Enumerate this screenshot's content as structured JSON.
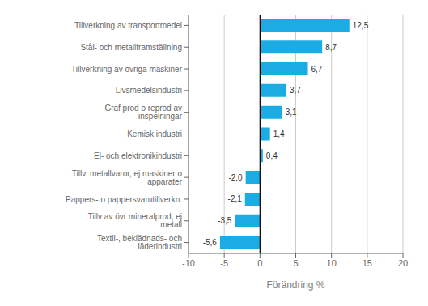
{
  "chart_data": {
    "type": "bar",
    "orientation": "horizontal",
    "categories": [
      "Textil-, beklädnads- och läderindustri",
      "Tillv av övr mineralprod, ej metall",
      "Pappers- o pappersvarutillverkn.",
      "Tillv. metallvaror, ej maskiner o apparater",
      "El- och elektronikindustri",
      "Kemisk industri",
      "Graf prod o reprod av inspelningar",
      "Livsmedelsindustri",
      "Tillverkning av övriga maskiner",
      "Stål- och metallframställning",
      "Tillverkning av transportmedel"
    ],
    "values": [
      -5.6,
      -3.5,
      -2.1,
      -2.0,
      0.4,
      1.4,
      3.1,
      3.7,
      6.7,
      8.7,
      12.5
    ],
    "value_labels": [
      "-5,6",
      "-3,5",
      "-2,1",
      "-2,0",
      "0,4",
      "1,4",
      "3,1",
      "3,7",
      "6,7",
      "8,7",
      "12,5"
    ],
    "data_labels": true,
    "color": "#1AACE3",
    "xlabel": "Förändring %",
    "xlim": [
      -10,
      20
    ],
    "xticks": [
      -10,
      -5,
      0,
      5,
      10,
      15,
      20
    ],
    "grid": true
  }
}
